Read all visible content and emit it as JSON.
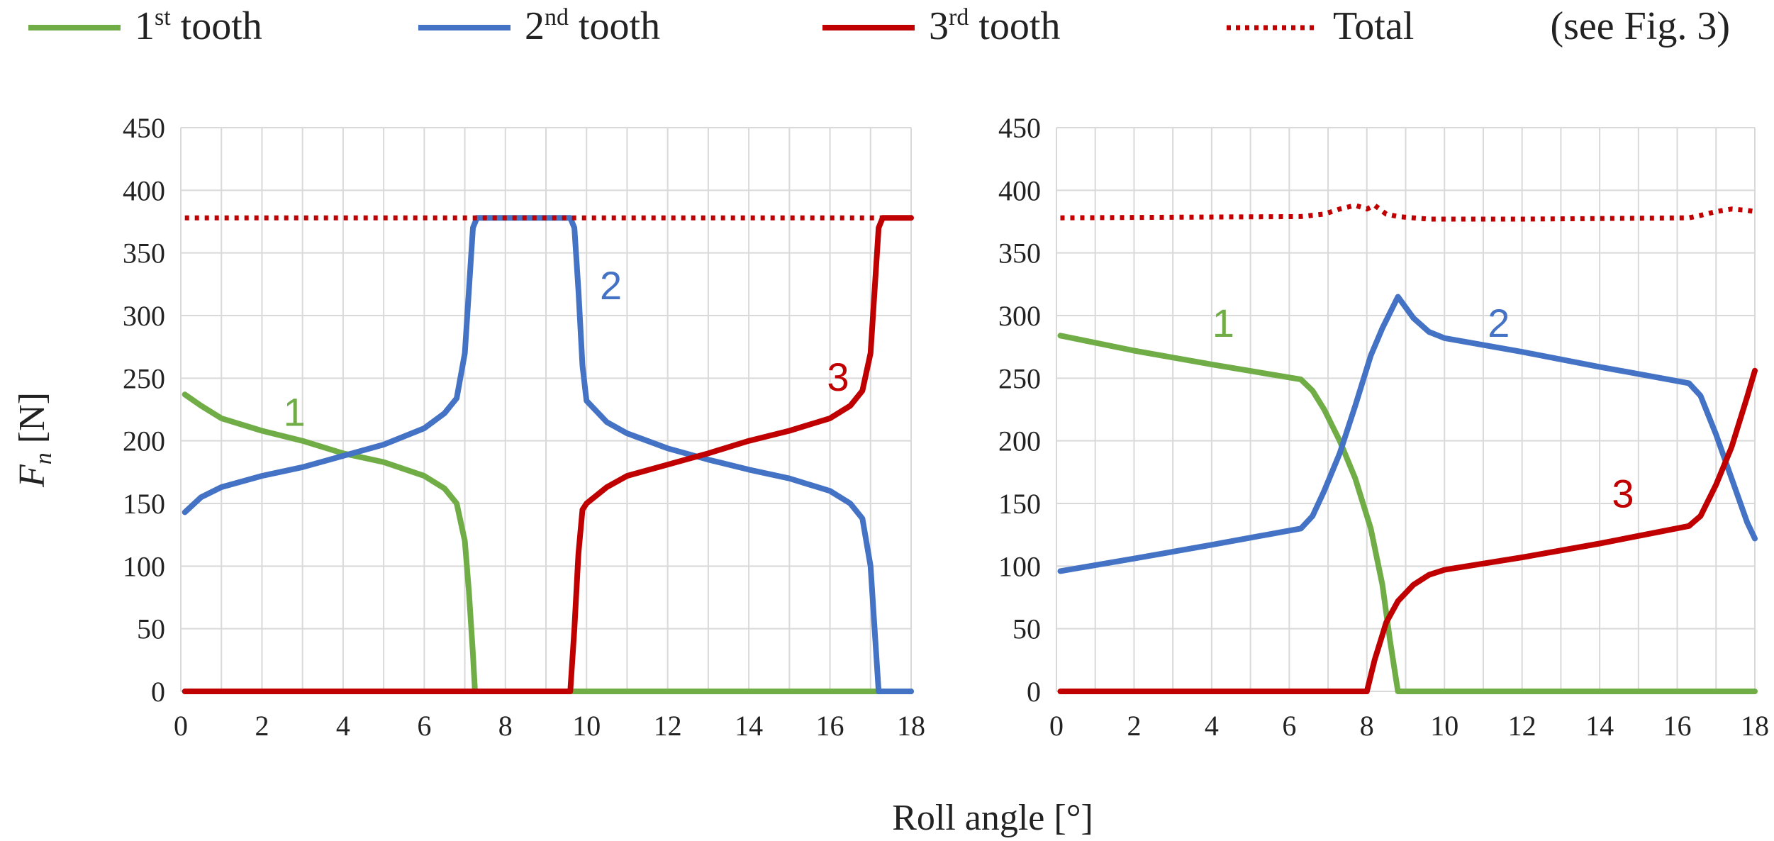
{
  "chart_data": {
    "type": "line",
    "legend": {
      "placement": "top",
      "entries": [
        {
          "key": "t1",
          "base": "1",
          "sup": "st",
          "rest": " tooth",
          "color": "#70ad47",
          "dash": false
        },
        {
          "key": "t2",
          "base": "2",
          "sup": "nd",
          "rest": " tooth",
          "color": "#4472c4",
          "dash": false
        },
        {
          "key": "t3",
          "base": "3",
          "sup": "rd",
          "rest": " tooth",
          "color": "#c00000",
          "dash": false
        },
        {
          "key": "total",
          "base": "Total",
          "sup": "",
          "rest": "",
          "color": "#c00000",
          "dash": true
        }
      ],
      "note": "(see Fig. 3)"
    },
    "xlabel": "Roll angle [°]",
    "ylabel_main": "F",
    "ylabel_sub": "n",
    "ylabel_unit": " [N]",
    "grid": true,
    "xlim": [
      0,
      18
    ],
    "ylim": [
      0,
      450
    ],
    "xticks": [
      "0",
      "2",
      "4",
      "6",
      "8",
      "10",
      "12",
      "14",
      "16",
      "18"
    ],
    "yticks": [
      "0",
      "50",
      "100",
      "150",
      "200",
      "250",
      "300",
      "350",
      "400",
      "450"
    ],
    "colors": {
      "t1": "#70ad47",
      "t2": "#4472c4",
      "t3": "#c00000",
      "total": "#c00000"
    },
    "panels": [
      {
        "series": [
          {
            "key": "t1",
            "points": [
              [
                0.1,
                237
              ],
              [
                0.5,
                228
              ],
              [
                1,
                218
              ],
              [
                2,
                208
              ],
              [
                3,
                200
              ],
              [
                4,
                190
              ],
              [
                5,
                183
              ],
              [
                6,
                172
              ],
              [
                6.5,
                162
              ],
              [
                6.8,
                150
              ],
              [
                7.0,
                120
              ],
              [
                7.1,
                80
              ],
              [
                7.2,
                30
              ],
              [
                7.25,
                0
              ],
              [
                18,
                0
              ]
            ]
          },
          {
            "key": "t2",
            "points": [
              [
                0.1,
                143
              ],
              [
                0.5,
                155
              ],
              [
                1,
                163
              ],
              [
                2,
                172
              ],
              [
                3,
                179
              ],
              [
                4,
                188
              ],
              [
                5,
                197
              ],
              [
                6,
                210
              ],
              [
                6.5,
                222
              ],
              [
                6.8,
                234
              ],
              [
                7.0,
                270
              ],
              [
                7.1,
                320
              ],
              [
                7.2,
                370
              ],
              [
                7.3,
                378
              ],
              [
                9.6,
                378
              ],
              [
                9.7,
                370
              ],
              [
                9.8,
                320
              ],
              [
                9.9,
                260
              ],
              [
                10,
                232
              ],
              [
                10.5,
                215
              ],
              [
                11,
                206
              ],
              [
                12,
                194
              ],
              [
                13,
                185
              ],
              [
                14,
                177
              ],
              [
                15,
                170
              ],
              [
                16,
                160
              ],
              [
                16.5,
                150
              ],
              [
                16.8,
                138
              ],
              [
                17.0,
                100
              ],
              [
                17.1,
                50
              ],
              [
                17.2,
                0
              ],
              [
                18,
                0
              ]
            ]
          },
          {
            "key": "t3",
            "points": [
              [
                0.1,
                0
              ],
              [
                9.6,
                0
              ],
              [
                9.7,
                50
              ],
              [
                9.8,
                110
              ],
              [
                9.9,
                145
              ],
              [
                10,
                150
              ],
              [
                10.5,
                163
              ],
              [
                11,
                172
              ],
              [
                12,
                181
              ],
              [
                13,
                190
              ],
              [
                14,
                200
              ],
              [
                15,
                208
              ],
              [
                16,
                218
              ],
              [
                16.5,
                228
              ],
              [
                16.8,
                240
              ],
              [
                17.0,
                270
              ],
              [
                17.1,
                320
              ],
              [
                17.2,
                370
              ],
              [
                17.3,
                378
              ],
              [
                18,
                378
              ]
            ]
          },
          {
            "key": "total",
            "points": [
              [
                0.1,
                378
              ],
              [
                18,
                378
              ]
            ]
          }
        ],
        "annotations": [
          {
            "text": "1",
            "key": "t1",
            "x": 2.8,
            "y": 212
          },
          {
            "text": "2",
            "key": "t2",
            "x": 10.6,
            "y": 313
          },
          {
            "text": "3",
            "key": "t3",
            "x": 16.2,
            "y": 240
          }
        ]
      },
      {
        "series": [
          {
            "key": "t1",
            "points": [
              [
                0.1,
                284
              ],
              [
                2,
                272
              ],
              [
                4,
                261
              ],
              [
                6.3,
                249
              ],
              [
                6.6,
                240
              ],
              [
                6.9,
                225
              ],
              [
                7.3,
                200
              ],
              [
                7.7,
                170
              ],
              [
                8.1,
                130
              ],
              [
                8.4,
                85
              ],
              [
                8.6,
                40
              ],
              [
                8.8,
                0
              ],
              [
                18,
                0
              ]
            ]
          },
          {
            "key": "t2",
            "points": [
              [
                0.1,
                96
              ],
              [
                2,
                106
              ],
              [
                4,
                117
              ],
              [
                6.3,
                130
              ],
              [
                6.6,
                140
              ],
              [
                6.9,
                160
              ],
              [
                7.3,
                190
              ],
              [
                7.7,
                228
              ],
              [
                8.1,
                268
              ],
              [
                8.4,
                290
              ],
              [
                8.8,
                315
              ],
              [
                9.2,
                298
              ],
              [
                9.6,
                287
              ],
              [
                10,
                282
              ],
              [
                12,
                271
              ],
              [
                14,
                259
              ],
              [
                16.3,
                246
              ],
              [
                16.6,
                236
              ],
              [
                17,
                205
              ],
              [
                17.4,
                170
              ],
              [
                17.8,
                135
              ],
              [
                18,
                122
              ]
            ]
          },
          {
            "key": "t3",
            "points": [
              [
                0.1,
                0
              ],
              [
                8.0,
                0
              ],
              [
                8.2,
                25
              ],
              [
                8.5,
                55
              ],
              [
                8.8,
                72
              ],
              [
                9.2,
                85
              ],
              [
                9.6,
                93
              ],
              [
                10,
                97
              ],
              [
                12,
                107
              ],
              [
                14,
                118
              ],
              [
                16.3,
                132
              ],
              [
                16.6,
                140
              ],
              [
                17,
                165
              ],
              [
                17.4,
                195
              ],
              [
                17.8,
                235
              ],
              [
                18,
                256
              ]
            ]
          },
          {
            "key": "total",
            "points": [
              [
                0.1,
                378
              ],
              [
                6.3,
                379
              ],
              [
                6.9,
                381
              ],
              [
                7.3,
                385
              ],
              [
                7.7,
                388
              ],
              [
                8.0,
                385
              ],
              [
                8.2,
                388
              ],
              [
                8.5,
                381
              ],
              [
                8.8,
                379
              ],
              [
                9.6,
                377
              ],
              [
                12,
                377
              ],
              [
                16.3,
                378
              ],
              [
                16.6,
                380
              ],
              [
                17,
                383
              ],
              [
                17.4,
                385
              ],
              [
                17.8,
                384
              ],
              [
                18,
                383
              ]
            ]
          }
        ],
        "annotations": [
          {
            "text": "1",
            "key": "t1",
            "x": 4.3,
            "y": 283
          },
          {
            "text": "2",
            "key": "t2",
            "x": 11.4,
            "y": 283
          },
          {
            "text": "3",
            "key": "t3",
            "x": 14.6,
            "y": 147
          }
        ]
      }
    ]
  }
}
